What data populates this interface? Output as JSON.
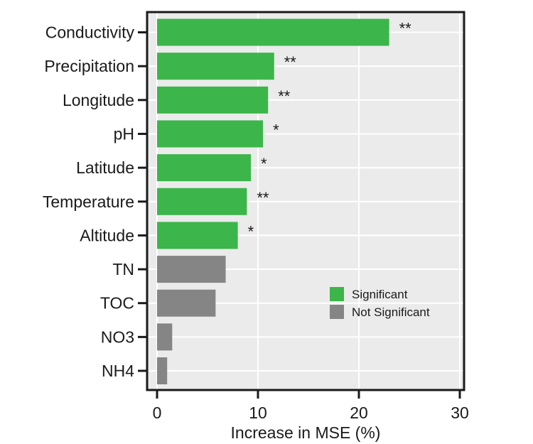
{
  "chart_data": {
    "type": "bar",
    "orientation": "horizontal",
    "xlabel": "Increase in MSE (%)",
    "ylabel": "",
    "xlim": [
      0,
      30
    ],
    "xticks": [
      0,
      10,
      20,
      30
    ],
    "grid": true,
    "legend_position": "lower-right",
    "colors": {
      "significant": "#3cb54a",
      "not_significant": "#858585",
      "panel": "#ebebeb",
      "grid": "#ffffff"
    },
    "legend": [
      {
        "key": "significant",
        "label": "Significant"
      },
      {
        "key": "not_significant",
        "label": "Not Significant"
      }
    ],
    "categories": [
      "Conductivity",
      "Precipitation",
      "Longitude",
      "pH",
      "Latitude",
      "Temperature",
      "Altitude",
      "TN",
      "TOC",
      "NO3",
      "NH4"
    ],
    "values": [
      23.0,
      11.6,
      11.0,
      10.5,
      9.3,
      8.9,
      8.0,
      6.8,
      5.8,
      1.5,
      1.0
    ],
    "significant": [
      true,
      true,
      true,
      true,
      true,
      true,
      true,
      false,
      false,
      false,
      false
    ],
    "annotations": [
      "**",
      "**",
      "**",
      "*",
      "*",
      "**",
      "*",
      "",
      "",
      "",
      ""
    ]
  }
}
